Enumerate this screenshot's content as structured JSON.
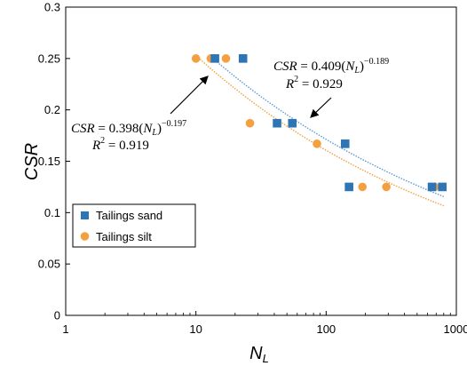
{
  "chart_data": {
    "type": "scatter",
    "title": "",
    "xlabel": "N",
    "xlabel_sub": "L",
    "ylabel": "CSR",
    "xscale": "log",
    "xlim": [
      1,
      1000
    ],
    "ylim": [
      0,
      0.3
    ],
    "xticks": [
      "1",
      "10",
      "100",
      "1000"
    ],
    "yticks": [
      "0",
      "0.05",
      "0.1",
      "0.15",
      "0.2",
      "0.25",
      "0.3"
    ],
    "grid": false,
    "legend_position": "bottom-left",
    "series": [
      {
        "name": "Tailings sand",
        "color": "#2e75b6",
        "marker": "square",
        "points": [
          [
            14,
            0.25
          ],
          [
            23,
            0.25
          ],
          [
            42,
            0.187
          ],
          [
            55,
            0.187
          ],
          [
            140,
            0.167
          ],
          [
            150,
            0.125
          ],
          [
            650,
            0.125
          ],
          [
            780,
            0.125
          ]
        ],
        "fit": {
          "a": 0.409,
          "b": -0.189,
          "r2": 0.929,
          "x_from": 14,
          "x_to": 800,
          "color": "#5b9bd5"
        }
      },
      {
        "name": "Tailings silt",
        "color": "#f4a040",
        "marker": "circle",
        "points": [
          [
            10,
            0.25
          ],
          [
            13,
            0.25
          ],
          [
            17,
            0.25
          ],
          [
            26,
            0.187
          ],
          [
            85,
            0.167
          ],
          [
            190,
            0.125
          ],
          [
            290,
            0.125
          ],
          [
            680,
            0.125
          ]
        ],
        "fit": {
          "a": 0.398,
          "b": -0.197,
          "r2": 0.919,
          "x_from": 10,
          "x_to": 800,
          "color": "#f4a040"
        }
      }
    ],
    "annotations": [
      {
        "series": 0,
        "coef": "0.409",
        "exp": "−0.189",
        "r2": "0.929"
      },
      {
        "series": 1,
        "coef": "0.398",
        "exp": "−0.197",
        "r2": "0.919"
      }
    ]
  }
}
